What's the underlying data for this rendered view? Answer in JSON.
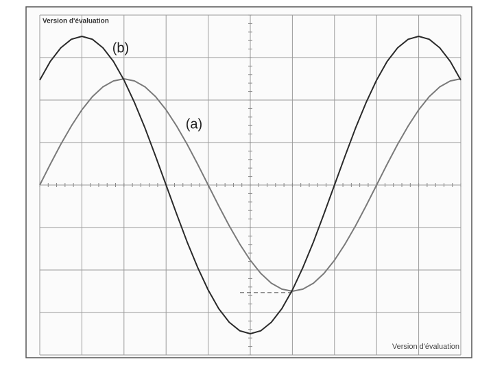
{
  "chart_data": {
    "type": "line",
    "watermark_top": "Version d'évaluation",
    "watermark_bottom": "Version d'évaluation",
    "x": [
      0,
      0.25,
      0.5,
      0.75,
      1,
      1.25,
      1.5,
      1.75,
      2,
      2.25,
      2.5,
      2.75,
      3,
      3.25,
      3.5,
      3.75,
      4,
      4.25,
      4.5,
      4.75,
      5,
      5.25,
      5.5,
      5.75,
      6,
      6.25,
      6.5,
      6.75,
      7,
      7.25,
      7.5,
      7.75,
      8,
      8.25,
      8.5,
      8.75,
      9,
      9.25,
      9.5,
      9.75,
      10
    ],
    "series": [
      {
        "name": "(a)",
        "color": "#7a7a7a",
        "values": [
          0,
          0.49,
          0.96,
          1.39,
          1.77,
          2.08,
          2.31,
          2.45,
          2.5,
          2.45,
          2.31,
          2.08,
          1.77,
          1.39,
          0.96,
          0.49,
          0,
          -0.49,
          -0.96,
          -1.39,
          -1.77,
          -2.08,
          -2.31,
          -2.45,
          -2.5,
          -2.45,
          -2.31,
          -2.08,
          -1.77,
          -1.39,
          -0.96,
          -0.49,
          0,
          0.49,
          0.96,
          1.39,
          1.77,
          2.08,
          2.31,
          2.45,
          2.5
        ]
      },
      {
        "name": "(b)",
        "color": "#2a2a2a",
        "values": [
          2.47,
          2.91,
          3.23,
          3.43,
          3.5,
          3.43,
          3.23,
          2.91,
          2.47,
          1.94,
          1.34,
          0.68,
          0,
          -0.68,
          -1.34,
          -1.94,
          -2.47,
          -2.91,
          -3.23,
          -3.43,
          -3.5,
          -3.43,
          -3.23,
          -2.91,
          -2.47,
          -1.94,
          -1.34,
          -0.68,
          0,
          0.68,
          1.34,
          1.94,
          2.47,
          2.91,
          3.23,
          3.43,
          3.5,
          3.43,
          3.23,
          2.91,
          2.47
        ]
      }
    ],
    "xlim": [
      0,
      10
    ],
    "ylim": [
      -4,
      4
    ],
    "xticks": [
      0,
      1,
      2,
      3,
      4,
      5,
      6,
      7,
      8,
      9,
      10
    ],
    "yticks": [
      -4,
      -3,
      -2,
      -1,
      0,
      1,
      2,
      3,
      4
    ],
    "grid": true
  }
}
